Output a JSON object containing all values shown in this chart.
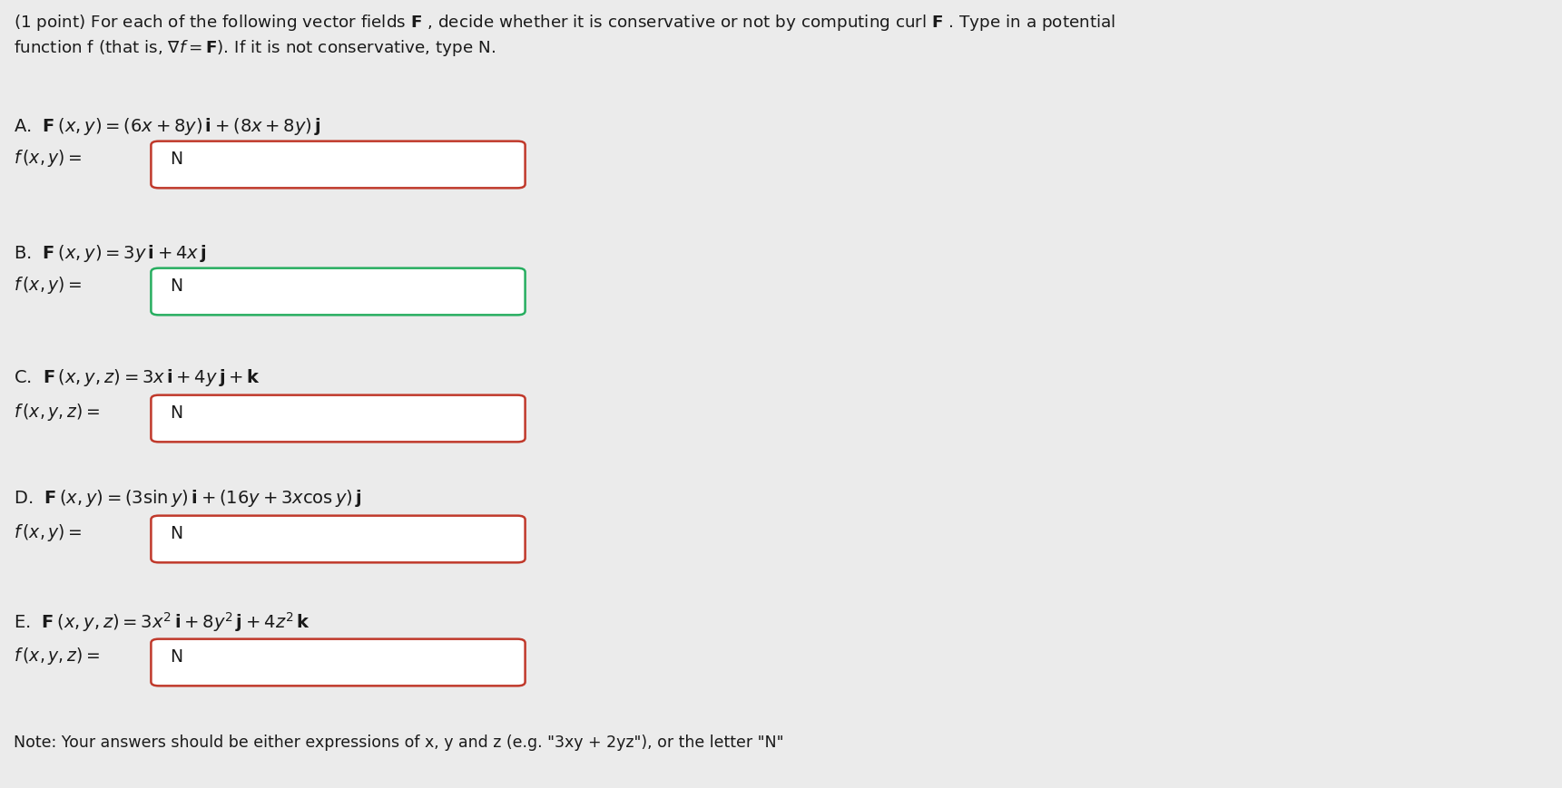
{
  "background_color": "#ebebeb",
  "problems": [
    {
      "label": "A.",
      "field_eq": "F\\,$(x, y)$ = $(6x + 8y)$\\textbf{i} + $(8x + 8y)$\\textbf{j}",
      "field_eq_plain": "A.  $\\mathbf{F}\\,(x, y) = (6x + 8y)\\,\\mathbf{i} + (8x + 8y)\\,\\mathbf{j}$",
      "answer_label_plain": "$f\\,(x, y) =$",
      "answer": "N",
      "box_border": "#c0392b",
      "is_3d": false
    },
    {
      "label": "B.",
      "field_eq_plain": "B.  $\\mathbf{F}\\,(x, y) = 3y\\,\\mathbf{i} + 4x\\,\\mathbf{j}$",
      "answer_label_plain": "$f\\,(x, y) =$",
      "answer": "N",
      "box_border": "#27ae60",
      "is_3d": false
    },
    {
      "label": "C.",
      "field_eq_plain": "C.  $\\mathbf{F}\\,(x, y, z) = 3x\\,\\mathbf{i} + 4y\\,\\mathbf{j} + \\mathbf{k}$",
      "answer_label_plain": "$f\\,(x, y, z) =$",
      "answer": "N",
      "box_border": "#c0392b",
      "is_3d": true
    },
    {
      "label": "D.",
      "field_eq_plain": "D.  $\\mathbf{F}\\,(x, y) = (3\\sin y)\\,\\mathbf{i} + (16y + 3x\\cos y)\\,\\mathbf{j}$",
      "answer_label_plain": "$f\\,(x, y) =$",
      "answer": "N",
      "box_border": "#c0392b",
      "is_3d": false
    },
    {
      "label": "E.",
      "field_eq_plain": "E.  $\\mathbf{F}\\,(x, y, z) = 3x^2\\,\\mathbf{i} + 8y^2\\,\\mathbf{j} + 4z^2\\,\\mathbf{k}$",
      "answer_label_plain": "$f\\,(x, y, z) =$",
      "answer": "N",
      "box_border": "#c0392b",
      "is_3d": true
    }
  ],
  "note": "Note: Your answers should be either expressions of x, y and z (e.g. \"3xy + 2yz\"), or the letter \"N\"",
  "text_color": "#1a1a1a",
  "box_fill": "#ffffff",
  "header_line1": "(1 point) For each of the following vector fields $\\mathbf{F}$ , decide whether it is conservative or not by computing curl $\\mathbf{F}$ . Type in a potential",
  "header_line2": "function f (that is, $\\nabla f = \\mathbf{F}$). If it is not conservative, type N.",
  "fontsize_header": 13.2,
  "fontsize_eq": 14.0,
  "fontsize_answer": 13.5,
  "fontsize_note": 12.5
}
